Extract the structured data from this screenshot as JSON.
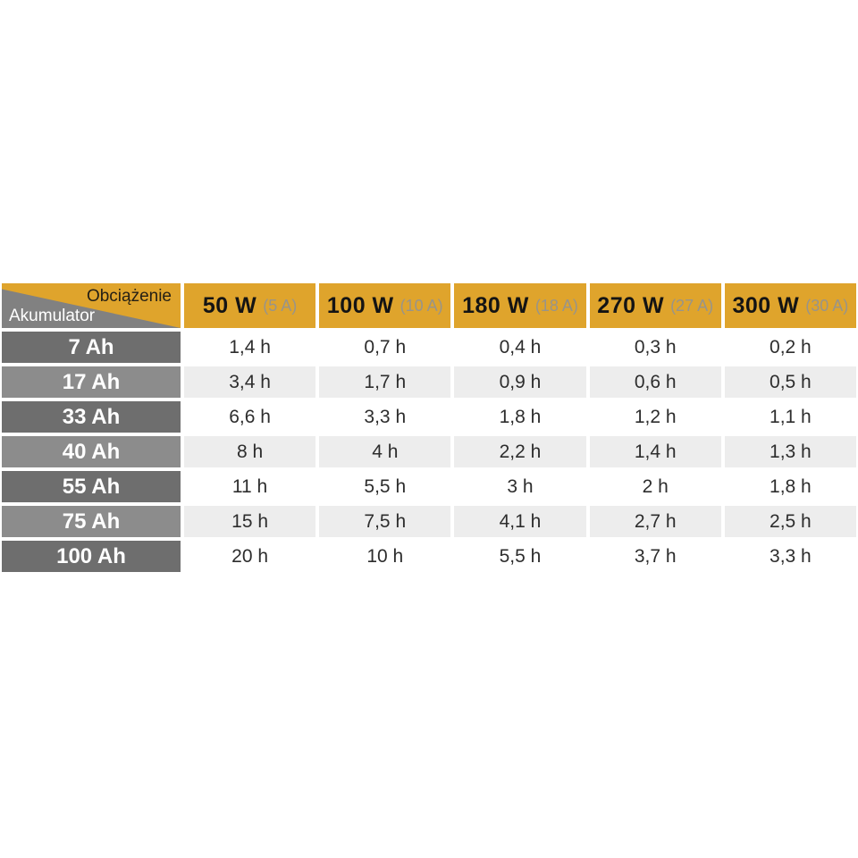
{
  "table": {
    "corner": {
      "top_label": "Obciążenie",
      "bottom_label": "Akumulator"
    },
    "columns": [
      {
        "power": "50 W",
        "amps": "(5 A)"
      },
      {
        "power": "100 W",
        "amps": "(10 A)"
      },
      {
        "power": "180 W",
        "amps": "(18 A)"
      },
      {
        "power": "270 W",
        "amps": "(27 A)"
      },
      {
        "power": "300 W",
        "amps": "(30 A)"
      }
    ],
    "rows": [
      {
        "battery": "7 Ah",
        "values": [
          "1,4 h",
          "0,7 h",
          "0,4 h",
          "0,3 h",
          "0,2 h"
        ]
      },
      {
        "battery": "17 Ah",
        "values": [
          "3,4 h",
          "1,7 h",
          "0,9 h",
          "0,6 h",
          "0,5 h"
        ]
      },
      {
        "battery": "33 Ah",
        "values": [
          "6,6 h",
          "3,3 h",
          "1,8 h",
          "1,2 h",
          "1,1 h"
        ]
      },
      {
        "battery": "40 Ah",
        "values": [
          "8 h",
          "4 h",
          "2,2 h",
          "1,4 h",
          "1,3 h"
        ]
      },
      {
        "battery": "55 Ah",
        "values": [
          "11 h",
          "5,5 h",
          "3 h",
          "2 h",
          "1,8 h"
        ]
      },
      {
        "battery": "75 Ah",
        "values": [
          "15 h",
          "7,5 h",
          "4,1 h",
          "2,7 h",
          "2,5 h"
        ]
      },
      {
        "battery": "100 Ah",
        "values": [
          "20 h",
          "10 h",
          "5,5 h",
          "3,7 h",
          "3,3 h"
        ]
      }
    ]
  },
  "colors": {
    "header_yellow": "#DFA42C",
    "row_header_dark_gray": "#6E6E6E",
    "row_header_light_gray": "#8C8C8C",
    "corner_triangle_gray": "#818181",
    "data_row_light_gray": "#EDEDED",
    "data_row_white": "#FFFFFF",
    "value_text": "#2D2D2D",
    "header_amps_text": "#98948A"
  },
  "chart_data": {
    "type": "table",
    "title": "",
    "column_axis_label": "Obciążenie",
    "row_axis_label": "Akumulator",
    "columns": [
      "50 W (5 A)",
      "100 W (10 A)",
      "180 W (18 A)",
      "270 W (27 A)",
      "300 W (30 A)"
    ],
    "rows": [
      "7 Ah",
      "17 Ah",
      "33 Ah",
      "40 Ah",
      "55 Ah",
      "75 Ah",
      "100 Ah"
    ],
    "values": [
      [
        "1,4 h",
        "0,7 h",
        "0,4 h",
        "0,3 h",
        "0,2 h"
      ],
      [
        "3,4 h",
        "1,7 h",
        "0,9 h",
        "0,6 h",
        "0,5 h"
      ],
      [
        "6,6 h",
        "3,3 h",
        "1,8 h",
        "1,2 h",
        "1,1 h"
      ],
      [
        "8 h",
        "4 h",
        "2,2 h",
        "1,4 h",
        "1,3 h"
      ],
      [
        "11 h",
        "5,5 h",
        "3 h",
        "2 h",
        "1,8 h"
      ],
      [
        "15 h",
        "7,5 h",
        "4,1 h",
        "2,7 h",
        "2,5 h"
      ],
      [
        "20 h",
        "10 h",
        "5,5 h",
        "3,7 h",
        "3,3 h"
      ]
    ]
  }
}
